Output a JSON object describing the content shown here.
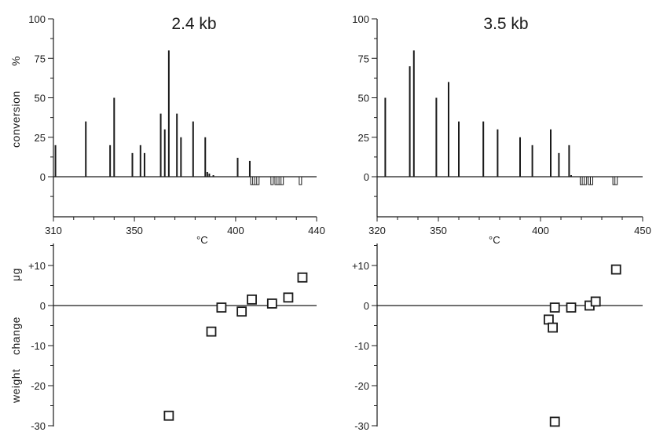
{
  "labels": {
    "left_title": "2.4 kb",
    "right_title": "3.5 kb",
    "y_top_word1": "conversion",
    "y_top_word2": "%",
    "x_unit": "°C",
    "y_bottom_word1": "weight",
    "y_bottom_word2": "change",
    "y_bottom_unit": "μg"
  },
  "chart_data": [
    {
      "type": "bar",
      "panel": "top-left",
      "title": "2.4 kb",
      "xlabel": "°C",
      "ylabel": "conversion %",
      "xlim": [
        310,
        440
      ],
      "ylim": [
        -25,
        100
      ],
      "xticks": [
        310,
        350,
        400,
        440
      ],
      "xtick_labels": [
        "310",
        "350",
        "400",
        "440"
      ],
      "yticks": [
        0,
        25,
        50,
        75,
        100
      ],
      "ytick_labels": [
        "0",
        "25",
        "50",
        "75",
        "100"
      ],
      "x": [
        311,
        326,
        338,
        340,
        349,
        353,
        355,
        363,
        365,
        367,
        371,
        373,
        379,
        385,
        386,
        387,
        389,
        401,
        407,
        408,
        409,
        410,
        411,
        418,
        420,
        421,
        422,
        423,
        432
      ],
      "values": [
        20,
        35,
        20,
        50,
        15,
        20,
        15,
        40,
        30,
        80,
        40,
        25,
        35,
        25,
        3,
        2,
        1,
        12,
        10,
        -5,
        -5,
        -5,
        -5,
        -5,
        -5,
        -5,
        -5,
        -5,
        -5
      ]
    },
    {
      "type": "bar",
      "panel": "top-right",
      "title": "3.5 kb",
      "xlabel": "°C",
      "ylabel": "conversion %",
      "xlim": [
        320,
        450
      ],
      "ylim": [
        -25,
        100
      ],
      "xticks": [
        320,
        350,
        400,
        450
      ],
      "xtick_labels": [
        "320",
        "350",
        "400",
        "450"
      ],
      "yticks": [
        0,
        25,
        50,
        75,
        100
      ],
      "ytick_labels": [
        "0",
        "25",
        "50",
        "75",
        "100"
      ],
      "x": [
        324,
        336,
        338,
        349,
        355,
        360,
        372,
        379,
        390,
        396,
        405,
        409,
        414,
        415,
        420,
        421,
        422,
        424,
        425,
        436,
        437
      ],
      "values": [
        50,
        70,
        80,
        50,
        60,
        35,
        35,
        30,
        25,
        20,
        30,
        15,
        20,
        1,
        -5,
        -5,
        -5,
        -5,
        -5,
        -5,
        -5
      ]
    },
    {
      "type": "scatter",
      "panel": "bottom-left",
      "ylabel": "weight change μg",
      "xlim": [
        310,
        440
      ],
      "ylim": [
        -30,
        17
      ],
      "yticks": [
        -30,
        -20,
        -10,
        0,
        10
      ],
      "ytick_labels": [
        "-30",
        "-20",
        "-10",
        "0",
        "+10"
      ],
      "x": [
        367,
        388,
        393,
        403,
        408,
        418,
        426,
        433
      ],
      "y": [
        -27.5,
        -6.5,
        -0.5,
        -1.5,
        1.5,
        0.5,
        2,
        7
      ]
    },
    {
      "type": "scatter",
      "panel": "bottom-right",
      "ylabel": "weight change μg",
      "xlim": [
        320,
        450
      ],
      "ylim": [
        -30,
        17
      ],
      "yticks": [
        -30,
        -20,
        -10,
        0,
        10
      ],
      "ytick_labels": [
        "-30",
        "-20",
        "-10",
        "0",
        "+10"
      ],
      "x": [
        404,
        406,
        407,
        407,
        415,
        424,
        427,
        437
      ],
      "y": [
        -3.5,
        -5.5,
        -0.5,
        -29,
        -0.5,
        0,
        1,
        9
      ]
    }
  ]
}
